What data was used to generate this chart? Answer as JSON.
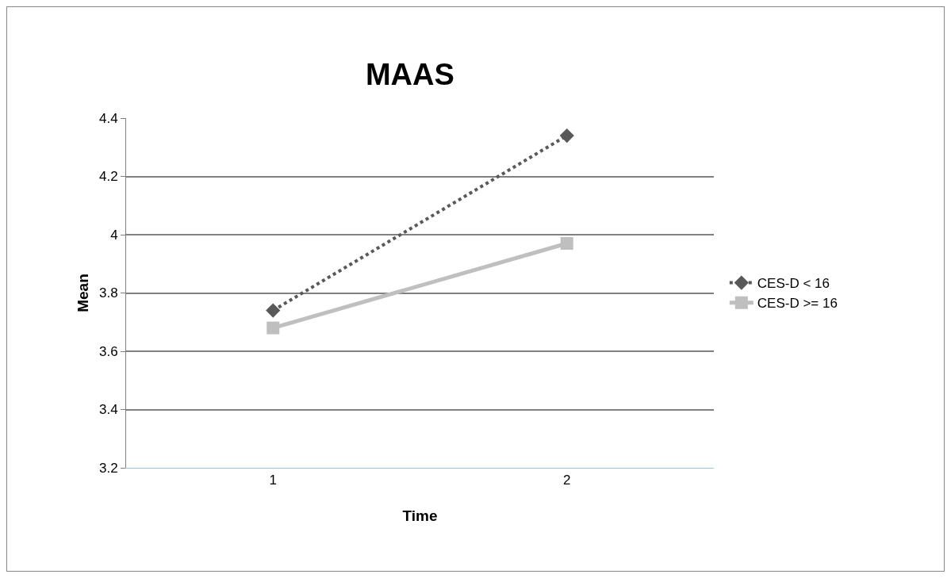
{
  "chart_data": {
    "type": "line",
    "title": "MAAS",
    "xlabel": "Time",
    "ylabel": "Mean",
    "categories": [
      "1",
      "2"
    ],
    "series": [
      {
        "name": "CES-D < 16",
        "color": "#595959",
        "values": [
          3.74,
          4.34
        ],
        "marker": "diamond",
        "line_style": "dotted"
      },
      {
        "name": "CES-D >= 16",
        "color": "#bfbfbf",
        "values": [
          3.68,
          3.97
        ],
        "marker": "square",
        "line_style": "solid"
      }
    ],
    "ylim": [
      3.2,
      4.4
    ],
    "yticks": [
      3.2,
      3.4,
      3.6,
      3.8,
      4,
      4.2,
      4.4
    ],
    "grid": "y",
    "legend": "right"
  }
}
